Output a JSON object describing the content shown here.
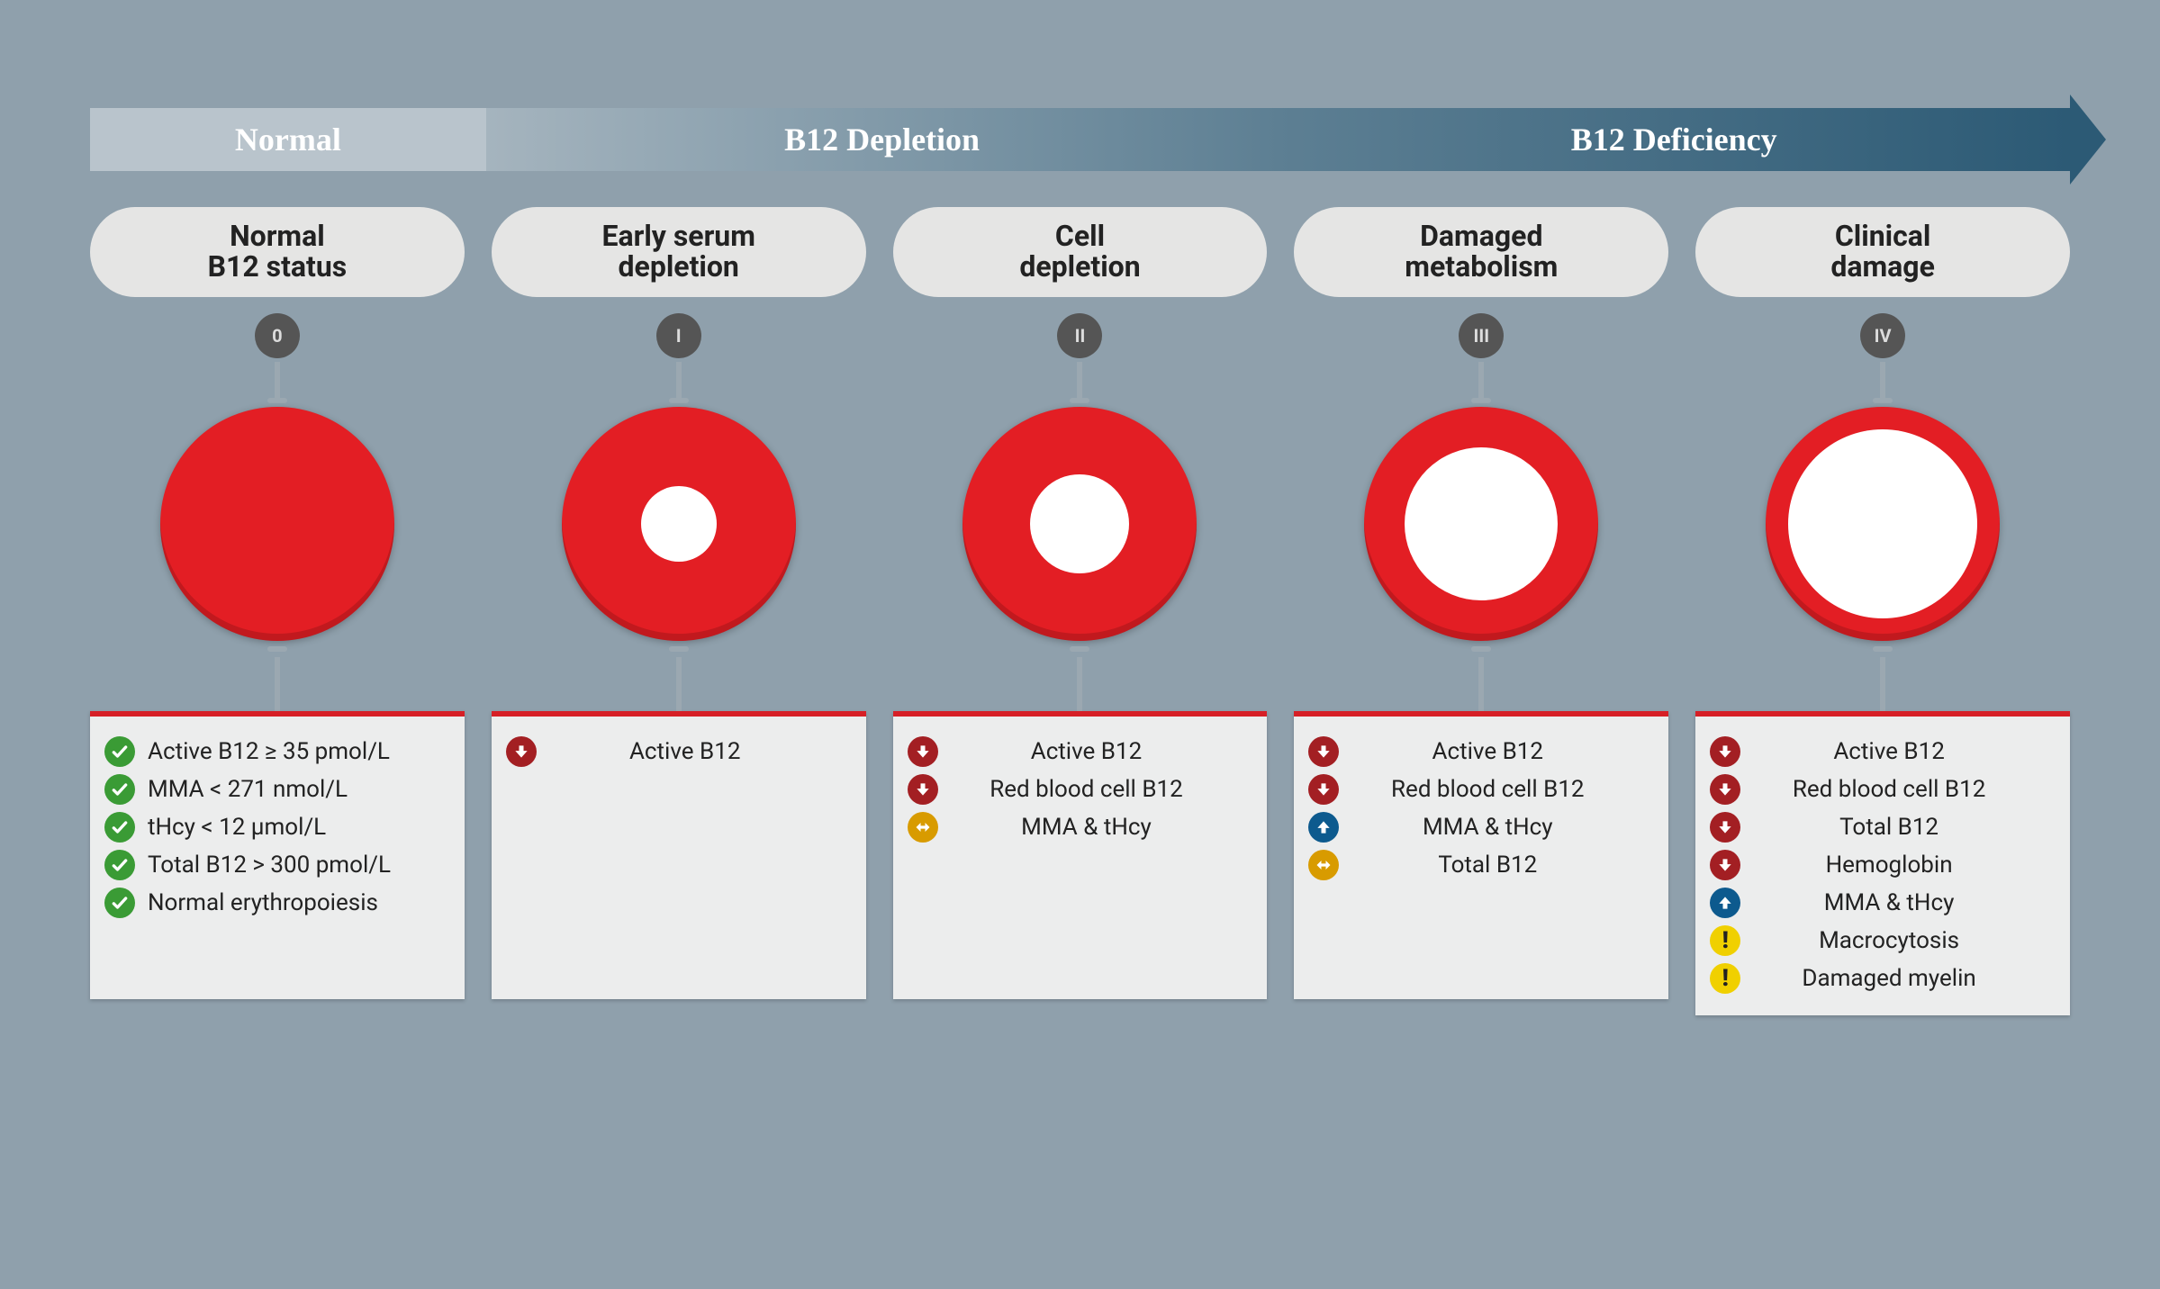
{
  "colors": {
    "page_bg": "#8fa0ac",
    "donut_red": "#e31e24",
    "box_top_border": "#d61f26",
    "box_bg": "#eceded",
    "pill_bg": "#e5e5e4",
    "badge_bg": "#555555",
    "stem": "#9ba8b1",
    "banner_normal": "#b9c4cc",
    "banner_grad_from": "#a5b4be",
    "banner_grad_mid": "#5d7f93",
    "banner_grad_to": "#2c5a75",
    "icon_check": "#3a9b35",
    "icon_down": "#a31f23",
    "icon_up": "#0d5a8e",
    "icon_swap": "#d89b00",
    "icon_warn": "#f0d000"
  },
  "typography": {
    "banner_fontsize": 36,
    "pill_fontsize": 32,
    "marker_fontsize": 26,
    "badge_fontsize": 20
  },
  "banner": {
    "segments": [
      {
        "label": "Normal",
        "class": "normal"
      },
      {
        "label": "B12 Depletion",
        "class": "depl"
      },
      {
        "label": "B12 Deficiency",
        "class": "defic"
      }
    ]
  },
  "donut": {
    "outer_diameter": 260,
    "hole_diameters": [
      0,
      84,
      110,
      170,
      210
    ]
  },
  "stages": [
    {
      "title": "Normal\nB12 status",
      "roman": "0",
      "hole": 0,
      "center_text": false,
      "markers": [
        {
          "icon": "check",
          "text": "Active B12 ≥ 35 pmol/L"
        },
        {
          "icon": "check",
          "text": "MMA < 271 nmol/L"
        },
        {
          "icon": "check",
          "text": "tHcy < 12 µmol/L"
        },
        {
          "icon": "check",
          "text": "Total B12 > 300 pmol/L"
        },
        {
          "icon": "check",
          "text": "Normal erythropoiesis"
        }
      ]
    },
    {
      "title": "Early serum\ndepletion",
      "roman": "I",
      "hole": 84,
      "center_text": true,
      "markers": [
        {
          "icon": "down",
          "text": "Active B12"
        }
      ]
    },
    {
      "title": "Cell\ndepletion",
      "roman": "II",
      "hole": 110,
      "center_text": true,
      "markers": [
        {
          "icon": "down",
          "text": "Active B12"
        },
        {
          "icon": "down",
          "text": "Red blood cell B12"
        },
        {
          "icon": "swap",
          "text": "MMA & tHcy"
        }
      ]
    },
    {
      "title": "Damaged\nmetabolism",
      "roman": "III",
      "hole": 170,
      "center_text": true,
      "markers": [
        {
          "icon": "down",
          "text": "Active B12"
        },
        {
          "icon": "down",
          "text": "Red blood cell B12"
        },
        {
          "icon": "up",
          "text": "MMA & tHcy"
        },
        {
          "icon": "swap",
          "text": "Total B12"
        }
      ]
    },
    {
      "title": "Clinical\ndamage",
      "roman": "IV",
      "hole": 210,
      "center_text": true,
      "markers": [
        {
          "icon": "down",
          "text": "Active B12"
        },
        {
          "icon": "down",
          "text": "Red blood cell B12"
        },
        {
          "icon": "down",
          "text": "Total B12"
        },
        {
          "icon": "down",
          "text": "Hemoglobin"
        },
        {
          "icon": "up",
          "text": "MMA & tHcy"
        },
        {
          "icon": "warn",
          "text": "Macrocytosis"
        },
        {
          "icon": "warn",
          "text": "Damaged myelin"
        }
      ]
    }
  ]
}
